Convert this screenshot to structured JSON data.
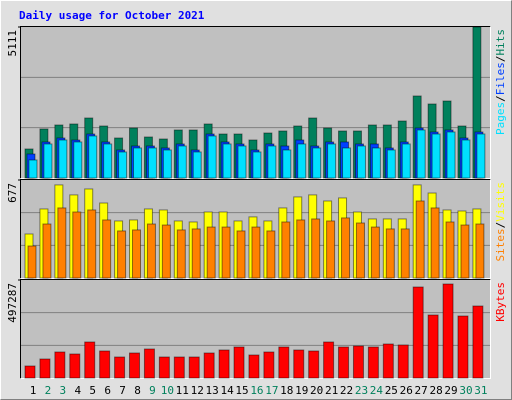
{
  "chart_data": {
    "type": "bar",
    "title": "Daily usage for October 2021",
    "categories": [
      "1",
      "2",
      "3",
      "4",
      "5",
      "6",
      "7",
      "8",
      "9",
      "10",
      "11",
      "12",
      "13",
      "14",
      "15",
      "16",
      "17",
      "18",
      "19",
      "20",
      "21",
      "22",
      "23",
      "24",
      "25",
      "26",
      "27",
      "28",
      "29",
      "30",
      "31"
    ],
    "category_colors": [
      "#000000",
      "#00805c",
      "#00805c",
      "#000000",
      "#000000",
      "#000000",
      "#000000",
      "#000000",
      "#00805c",
      "#00805c",
      "#000000",
      "#000000",
      "#000000",
      "#000000",
      "#000000",
      "#00805c",
      "#00805c",
      "#000000",
      "#000000",
      "#000000",
      "#000000",
      "#000000",
      "#00805c",
      "#00805c",
      "#000000",
      "#000000",
      "#000000",
      "#000000",
      "#000000",
      "#00805c",
      "#00805c"
    ],
    "legend_separator": "/",
    "panels": [
      {
        "ylim": [
          0,
          5111
        ],
        "yticks": [
          5111
        ],
        "series": [
          {
            "name": "Hits",
            "color": "#00805c",
            "values": [
              982,
              1659,
              1794,
              1828,
              2031,
              1760,
              1354,
              1692,
              1388,
              1320,
              1625,
              1625,
              1828,
              1489,
              1489,
              1286,
              1523,
              1591,
              1760,
              2031,
              1692,
              1591,
              1591,
              1794,
              1794,
              1929,
              2776,
              2505,
              2606,
              1760,
              5111
            ]
          },
          {
            "name": "Files",
            "color": "#0040ff",
            "values": [
              812,
              1219,
              1354,
              1286,
              1489,
              1219,
              948,
              1083,
              1083,
              1016,
              1151,
              948,
              1489,
              1219,
              1151,
              948,
              1151,
              1083,
              1286,
              1083,
              1219,
              1219,
              1151,
              1151,
              1016,
              1219,
              1692,
              1557,
              1625,
              1354,
              1557
            ]
          },
          {
            "name": "Pages",
            "color": "#00e0ff",
            "values": [
              609,
              1151,
              1286,
              1219,
              1422,
              1151,
              880,
              1016,
              1016,
              948,
              1083,
              880,
              1422,
              1151,
              1083,
              880,
              1083,
              948,
              1151,
              1016,
              1151,
              1016,
              1083,
              1016,
              948,
              1151,
              1625,
              1489,
              1557,
              1286,
              1489
            ]
          }
        ]
      },
      {
        "ylim": [
          0,
          677
        ],
        "yticks": [
          677
        ],
        "series": [
          {
            "name": "Visits",
            "color": "#ffff00",
            "values": [
              304,
              477,
              643,
              574,
              615,
              518,
              394,
              401,
              477,
              470,
              394,
              387,
              456,
              456,
              394,
              422,
              394,
              484,
              560,
              574,
              532,
              553,
              456,
              408,
              408,
              408,
              643,
              587,
              470,
              463,
              477
            ]
          },
          {
            "name": "Sites",
            "color": "#ff8000",
            "values": [
              221,
              373,
              484,
              456,
              470,
              401,
              325,
              332,
              373,
              366,
              332,
              339,
              352,
              352,
              325,
              352,
              325,
              387,
              401,
              408,
              394,
              415,
              380,
              352,
              339,
              339,
              532,
              484,
              387,
              366,
              373
            ]
          }
        ]
      },
      {
        "ylim": [
          0,
          497287
        ],
        "yticks": [
          497287
        ],
        "series": [
          {
            "name": "KBytes",
            "color": "#ff0000",
            "values": [
              60890,
              96410,
              131925,
              121780,
              182670,
              137000,
              106555,
              126850,
              147150,
              106555,
              106555,
              106555,
              126850,
              142070,
              157295,
              116700,
              131925,
              157295,
              142070,
              137000,
              182670,
              157295,
              162370,
              157295,
              172520,
              167440,
              461735,
              319660,
              476955,
              314590,
              365330
            ]
          }
        ]
      }
    ]
  }
}
